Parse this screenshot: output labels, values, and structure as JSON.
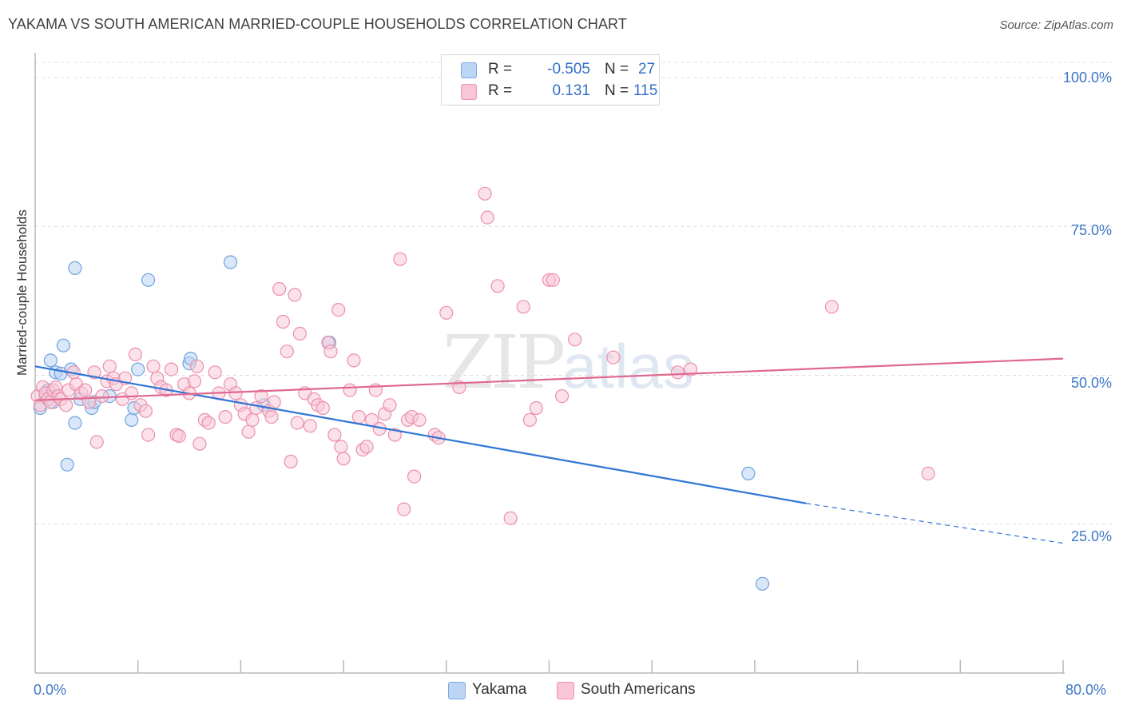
{
  "title": "YAKAMA VS SOUTH AMERICAN MARRIED-COUPLE HOUSEHOLDS CORRELATION CHART",
  "source": "Source: ZipAtlas.com",
  "watermark": {
    "zip": "ZIP",
    "atlas": "atlas"
  },
  "legend": {
    "yakama": {
      "r_label": "R =",
      "r_value": "-0.505",
      "n_label": "N =",
      "n_value": "27",
      "color": "#a7c8f0"
    },
    "south_americans": {
      "r_label": "R =",
      "r_value": "0.131",
      "n_label": "N =",
      "n_value": "115",
      "color": "#f5b5c8"
    }
  },
  "bottom_legend": {
    "yakama": "Yakama",
    "south_americans": "South Americans"
  },
  "chart_data": {
    "type": "scatter",
    "xlabel": "",
    "ylabel": "Married-couple Households",
    "xlim": [
      0,
      80
    ],
    "ylim": [
      0,
      102
    ],
    "x_tick_labels": {
      "min": "0.0%",
      "max": "80.0%"
    },
    "y_ticks": [
      {
        "value": 100,
        "label": "100.0%"
      },
      {
        "value": 75,
        "label": "75.0%"
      },
      {
        "value": 50,
        "label": "50.0%"
      },
      {
        "value": 25,
        "label": "25.0%"
      }
    ],
    "series": [
      {
        "name": "Yakama",
        "color": "#6fa3e0",
        "fill": "#b9d3f3",
        "line_color": "#2e74d6",
        "trend": {
          "x": [
            0,
            60
          ],
          "y": [
            51.5,
            28.5
          ],
          "dashed_to": [
            80,
            21.8
          ]
        },
        "points": [
          [
            0.4,
            44.5
          ],
          [
            0.8,
            46.5
          ],
          [
            1.0,
            47.5
          ],
          [
            1.2,
            52.5
          ],
          [
            1.4,
            45.5
          ],
          [
            1.6,
            50.5
          ],
          [
            2.0,
            50.3
          ],
          [
            2.2,
            55.0
          ],
          [
            2.5,
            35.0
          ],
          [
            2.8,
            51.0
          ],
          [
            3.1,
            42.0
          ],
          [
            3.1,
            68.0
          ],
          [
            3.5,
            46.0
          ],
          [
            4.4,
            44.5
          ],
          [
            4.6,
            45.5
          ],
          [
            5.8,
            46.5
          ],
          [
            7.5,
            42.5
          ],
          [
            7.7,
            44.5
          ],
          [
            8.0,
            51.0
          ],
          [
            8.8,
            66.0
          ],
          [
            12.0,
            52.0
          ],
          [
            12.1,
            52.8
          ],
          [
            15.2,
            69.0
          ],
          [
            17.8,
            45.0
          ],
          [
            22.9,
            55.5
          ],
          [
            55.5,
            33.5
          ],
          [
            56.6,
            15.0
          ]
        ]
      },
      {
        "name": "South Americans",
        "color": "#ec8fac",
        "fill": "#f8c8d7",
        "line_color": "#e0688f",
        "trend": {
          "x": [
            0,
            80
          ],
          "y": [
            45.8,
            52.8
          ]
        },
        "points": [
          [
            0.2,
            46.5
          ],
          [
            0.4,
            45.0
          ],
          [
            0.6,
            48.0
          ],
          [
            0.8,
            47.0
          ],
          [
            1.0,
            46.0
          ],
          [
            1.2,
            45.5
          ],
          [
            1.4,
            47.5
          ],
          [
            1.6,
            48.0
          ],
          [
            1.8,
            46.5
          ],
          [
            2.0,
            46.0
          ],
          [
            2.4,
            45.0
          ],
          [
            2.6,
            47.5
          ],
          [
            3.0,
            50.5
          ],
          [
            3.2,
            48.5
          ],
          [
            3.6,
            47.0
          ],
          [
            3.9,
            47.5
          ],
          [
            4.2,
            45.5
          ],
          [
            4.6,
            50.5
          ],
          [
            4.8,
            38.8
          ],
          [
            5.2,
            46.5
          ],
          [
            5.6,
            49.0
          ],
          [
            5.8,
            51.5
          ],
          [
            6.1,
            49.5
          ],
          [
            6.3,
            48.5
          ],
          [
            6.8,
            46.0
          ],
          [
            7.0,
            49.5
          ],
          [
            7.5,
            47.0
          ],
          [
            7.8,
            53.5
          ],
          [
            8.2,
            45.0
          ],
          [
            8.6,
            44.0
          ],
          [
            8.8,
            40.0
          ],
          [
            9.2,
            51.5
          ],
          [
            9.5,
            49.5
          ],
          [
            9.8,
            48.0
          ],
          [
            10.2,
            47.5
          ],
          [
            10.6,
            51.0
          ],
          [
            11.0,
            40.0
          ],
          [
            11.2,
            39.8
          ],
          [
            11.6,
            48.5
          ],
          [
            12.0,
            47.0
          ],
          [
            12.4,
            49.0
          ],
          [
            12.6,
            51.5
          ],
          [
            12.8,
            38.5
          ],
          [
            13.2,
            42.5
          ],
          [
            13.5,
            42.0
          ],
          [
            14.0,
            50.5
          ],
          [
            14.3,
            47.0
          ],
          [
            14.8,
            43.0
          ],
          [
            15.2,
            48.5
          ],
          [
            15.6,
            47.0
          ],
          [
            16.0,
            45.0
          ],
          [
            16.3,
            43.5
          ],
          [
            16.6,
            40.5
          ],
          [
            16.9,
            42.5
          ],
          [
            17.2,
            44.5
          ],
          [
            17.6,
            46.5
          ],
          [
            18.2,
            44.0
          ],
          [
            18.4,
            43.0
          ],
          [
            18.6,
            45.5
          ],
          [
            19.0,
            64.5
          ],
          [
            19.3,
            59.0
          ],
          [
            19.6,
            54.0
          ],
          [
            19.9,
            35.5
          ],
          [
            20.2,
            63.5
          ],
          [
            20.4,
            42.0
          ],
          [
            20.6,
            57.0
          ],
          [
            21.0,
            47.0
          ],
          [
            21.4,
            41.5
          ],
          [
            21.7,
            46.0
          ],
          [
            22.0,
            45.0
          ],
          [
            22.4,
            44.5
          ],
          [
            22.8,
            55.5
          ],
          [
            23.0,
            54.0
          ],
          [
            23.3,
            40.0
          ],
          [
            23.6,
            61.0
          ],
          [
            23.8,
            38.0
          ],
          [
            24.0,
            36.0
          ],
          [
            24.5,
            47.5
          ],
          [
            24.8,
            52.5
          ],
          [
            25.2,
            43.0
          ],
          [
            25.5,
            37.5
          ],
          [
            25.8,
            38.0
          ],
          [
            26.2,
            42.5
          ],
          [
            26.5,
            47.5
          ],
          [
            26.8,
            41.0
          ],
          [
            27.2,
            43.5
          ],
          [
            27.6,
            45.0
          ],
          [
            28.0,
            40.0
          ],
          [
            28.4,
            69.5
          ],
          [
            28.7,
            27.5
          ],
          [
            29.0,
            42.5
          ],
          [
            29.3,
            43.0
          ],
          [
            29.5,
            33.0
          ],
          [
            29.9,
            42.5
          ],
          [
            31.1,
            40.0
          ],
          [
            31.4,
            39.5
          ],
          [
            32.0,
            60.5
          ],
          [
            35.0,
            80.5
          ],
          [
            35.2,
            76.5
          ],
          [
            36.0,
            65.0
          ],
          [
            37.0,
            26.0
          ],
          [
            38.0,
            61.5
          ],
          [
            38.5,
            42.5
          ],
          [
            39.0,
            44.5
          ],
          [
            40.0,
            66.0
          ],
          [
            40.3,
            66.0
          ],
          [
            41.0,
            46.5
          ],
          [
            42.0,
            56.0
          ],
          [
            50.0,
            50.5
          ],
          [
            51.0,
            51.0
          ],
          [
            62.0,
            61.5
          ],
          [
            69.5,
            33.5
          ],
          [
            45.0,
            53.0
          ],
          [
            33.0,
            48.0
          ]
        ]
      }
    ]
  }
}
